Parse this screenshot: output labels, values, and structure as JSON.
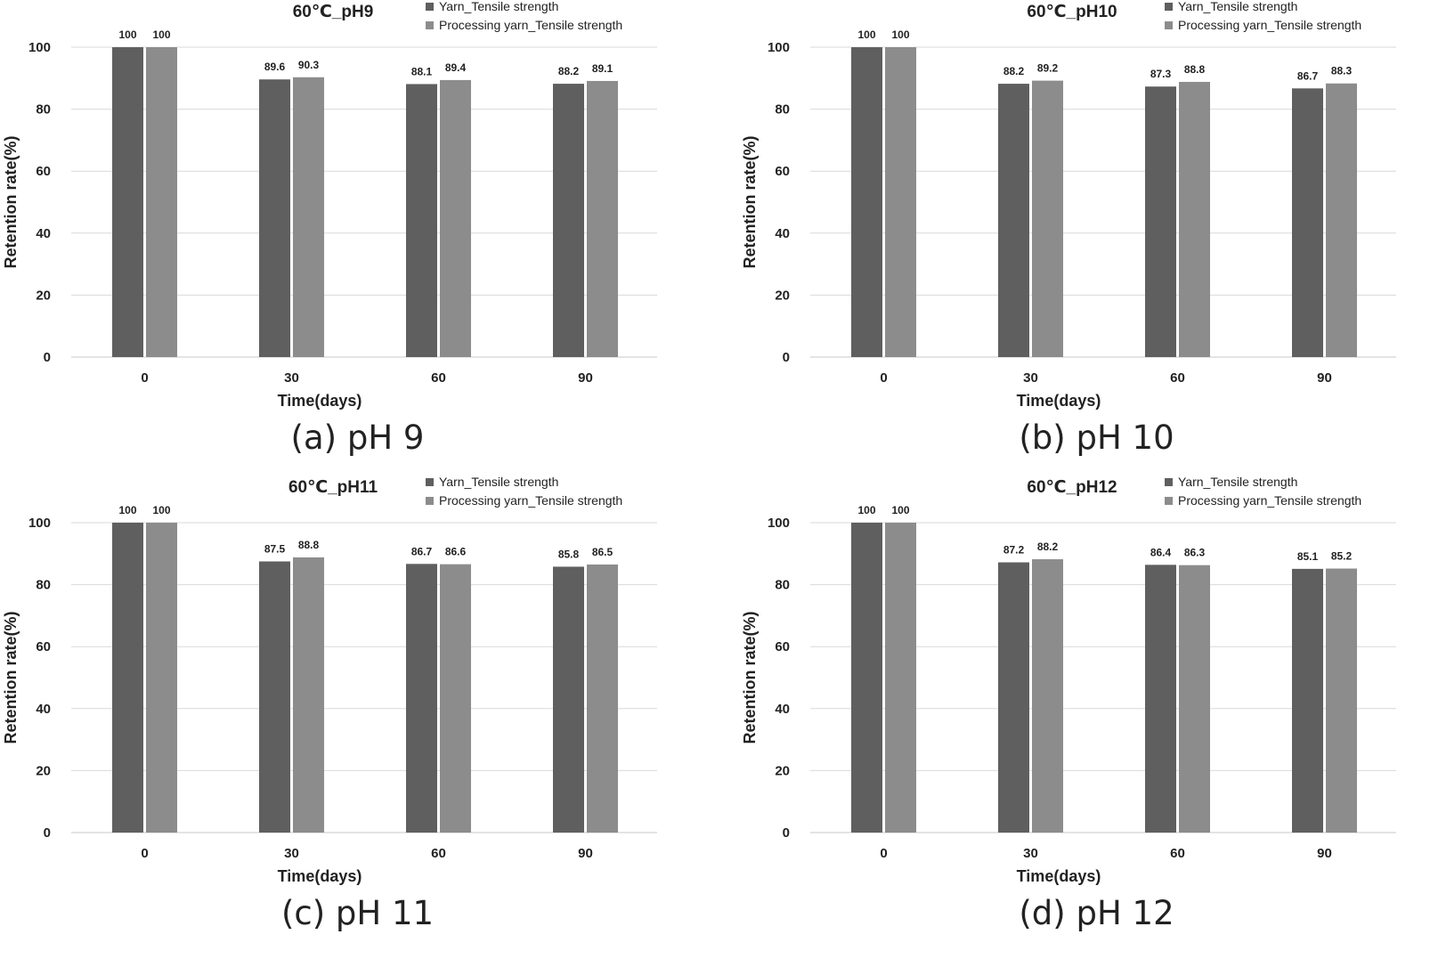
{
  "chart_data": [
    {
      "type": "bar",
      "title": "60℃_pH9",
      "caption": "(a) pH 9",
      "xlabel": "Time(days)",
      "ylabel": "Retention rate(%)",
      "categories": [
        "0",
        "30",
        "60",
        "90"
      ],
      "ylim": [
        0,
        100
      ],
      "yticks": [
        0,
        20,
        40,
        60,
        80,
        100
      ],
      "grid": true,
      "legend_position": "top-right",
      "series": [
        {
          "name": "Yarn_Tensile strength",
          "color": "#5f5f5f",
          "values": [
            100,
            89.6,
            88.1,
            88.2
          ]
        },
        {
          "name": "Processing yarn_Tensile strength",
          "color": "#8c8c8c",
          "values": [
            100,
            90.3,
            89.4,
            89.1
          ]
        }
      ]
    },
    {
      "type": "bar",
      "title": "60℃_pH10",
      "caption": "(b) pH 10",
      "xlabel": "Time(days)",
      "ylabel": "Retention rate(%)",
      "categories": [
        "0",
        "30",
        "60",
        "90"
      ],
      "ylim": [
        0,
        100
      ],
      "yticks": [
        0,
        20,
        40,
        60,
        80,
        100
      ],
      "grid": true,
      "legend_position": "top-right",
      "series": [
        {
          "name": "Yarn_Tensile strength",
          "color": "#5f5f5f",
          "values": [
            100,
            88.2,
            87.3,
            86.7
          ]
        },
        {
          "name": "Processing yarn_Tensile strength",
          "color": "#8c8c8c",
          "values": [
            100,
            89.2,
            88.8,
            88.3
          ]
        }
      ]
    },
    {
      "type": "bar",
      "title": "60℃_pH11",
      "caption": "(c) pH 11",
      "xlabel": "Time(days)",
      "ylabel": "Retention rate(%)",
      "categories": [
        "0",
        "30",
        "60",
        "90"
      ],
      "ylim": [
        0,
        100
      ],
      "yticks": [
        0,
        20,
        40,
        60,
        80,
        100
      ],
      "grid": true,
      "legend_position": "top-right",
      "series": [
        {
          "name": "Yarn_Tensile strength",
          "color": "#5f5f5f",
          "values": [
            100,
            87.5,
            86.7,
            85.8
          ]
        },
        {
          "name": "Processing yarn_Tensile strength",
          "color": "#8c8c8c",
          "values": [
            100,
            88.8,
            86.6,
            86.5
          ]
        }
      ]
    },
    {
      "type": "bar",
      "title": "60℃_pH12",
      "caption": "(d) pH 12",
      "xlabel": "Time(days)",
      "ylabel": "Retention rate(%)",
      "categories": [
        "0",
        "30",
        "60",
        "90"
      ],
      "ylim": [
        0,
        100
      ],
      "yticks": [
        0,
        20,
        40,
        60,
        80,
        100
      ],
      "grid": true,
      "legend_position": "top-right",
      "series": [
        {
          "name": "Yarn_Tensile strength",
          "color": "#5f5f5f",
          "values": [
            100,
            87.2,
            86.4,
            85.1
          ]
        },
        {
          "name": "Processing yarn_Tensile strength",
          "color": "#8c8c8c",
          "values": [
            100,
            88.2,
            86.3,
            85.2
          ]
        }
      ]
    }
  ]
}
